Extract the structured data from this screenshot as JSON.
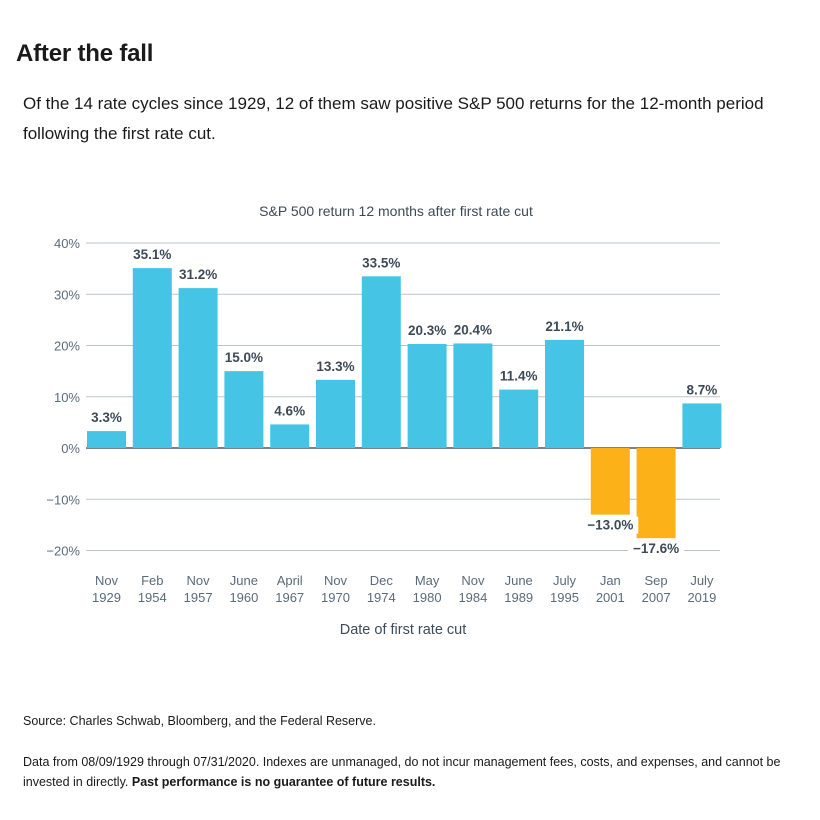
{
  "header": {
    "title": "After the fall",
    "subtitle": "Of the 14 rate cycles since 1929, 12 of them saw positive S&P 500 returns for the 12-month period following the first rate cut."
  },
  "footer": {
    "source": "Source: Charles Schwab, Bloomberg, and the Federal Reserve.",
    "note_text": "Data from 08/09/1929 through 07/31/2020. Indexes are unmanaged, do not incur management fees, costs, and expenses, and cannot be invested in directly. ",
    "note_bold": "Past performance is no guarantee of future results."
  },
  "colors": {
    "positive": "#45c4e6",
    "negative": "#fbb117",
    "grid": "#bcc3ca",
    "axis_text": "#5b6b7b",
    "label_text": "#3d4a57"
  },
  "chart_data": {
    "type": "bar",
    "title": "S&P 500 return 12 months after first rate cut",
    "xlabel": "Date of first rate cut",
    "ylabel": "",
    "categories": [
      [
        "Nov",
        "1929"
      ],
      [
        "Feb",
        "1954"
      ],
      [
        "Nov",
        "1957"
      ],
      [
        "June",
        "1960"
      ],
      [
        "April",
        "1967"
      ],
      [
        "Nov",
        "1970"
      ],
      [
        "Dec",
        "1974"
      ],
      [
        "May",
        "1980"
      ],
      [
        "Nov",
        "1984"
      ],
      [
        "June",
        "1989"
      ],
      [
        "July",
        "1995"
      ],
      [
        "Jan",
        "2001"
      ],
      [
        "Sep",
        "2007"
      ],
      [
        "July",
        "2019"
      ]
    ],
    "values": [
      3.3,
      35.1,
      31.2,
      15.0,
      4.6,
      13.3,
      33.5,
      20.3,
      20.4,
      11.4,
      21.1,
      -13.0,
      -17.6,
      8.7
    ],
    "value_labels": [
      "3.3%",
      "35.1%",
      "31.2%",
      "15.0%",
      "4.6%",
      "13.3%",
      "33.5%",
      "20.3%",
      "20.4%",
      "11.4%",
      "21.1%",
      "−13.0%",
      "−17.6%",
      "8.7%"
    ],
    "yticks": [
      40,
      30,
      20,
      10,
      0,
      -10,
      -20
    ],
    "ytick_labels": [
      "40%",
      "30%",
      "20%",
      "10%",
      "0%",
      "−10%",
      "−20%"
    ],
    "ylim": [
      -20,
      40
    ],
    "grid": true,
    "legend": "none"
  }
}
